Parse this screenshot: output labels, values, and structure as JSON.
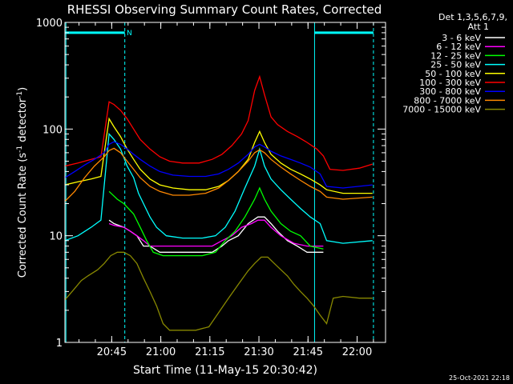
{
  "chart_data": {
    "type": "line",
    "title": "RHESSI Observing Summary Count Rates, Corrected",
    "xlabel": "Start Time (11-May-15 20:30:42)",
    "ylabel_main": "Corrected Count Rate (s",
    "ylabel_sup1": "-1",
    "ylabel_mid": " detector",
    "ylabel_sup2": "-1",
    "ylabel_end": ")",
    "yscale": "log",
    "ylim": [
      1,
      1000
    ],
    "xlim_minutes": [
      0,
      98
    ],
    "x_ticks": [
      {
        "label": "20:45",
        "minute": 14.3
      },
      {
        "label": "21:00",
        "minute": 29.3
      },
      {
        "label": "21:15",
        "minute": 44.3
      },
      {
        "label": "21:30",
        "minute": 59.3
      },
      {
        "label": "21:45",
        "minute": 74.3
      },
      {
        "label": "22:00",
        "minute": 89.3
      }
    ],
    "y_ticks": [
      {
        "label": "1",
        "value": 1
      },
      {
        "label": "10",
        "value": 10
      },
      {
        "label": "100",
        "value": 100
      },
      {
        "label": "1000",
        "value": 1000
      }
    ],
    "legend_header": [
      "Det 1,3,5,6,7,9,",
      "Att 1"
    ],
    "legend_position": "top-right",
    "night_marker": "N",
    "footer_timestamp": "25-Oct-2021 22:18",
    "night_bars": [
      {
        "x_start": 0,
        "x_end": 18.3,
        "value": 800
      },
      {
        "x_start": 76.3,
        "x_end": 94.3,
        "value": 800
      }
    ],
    "vlines_solid": [
      0.3,
      76.3
    ],
    "vlines_dashed": [
      18.3,
      94.3
    ],
    "series": [
      {
        "name": "3 - 6 keV",
        "color": "#ffffff",
        "points": [
          [
            13.5,
            14
          ],
          [
            15,
            13
          ],
          [
            18,
            12
          ],
          [
            20,
            11
          ],
          [
            22,
            10
          ],
          [
            24,
            8
          ],
          [
            26,
            8
          ],
          [
            29,
            7
          ],
          [
            33,
            7
          ],
          [
            40,
            7
          ],
          [
            45,
            7
          ],
          [
            48,
            8
          ],
          [
            50,
            9
          ],
          [
            53,
            10
          ],
          [
            56,
            13
          ],
          [
            59,
            15
          ],
          [
            61,
            15
          ],
          [
            63,
            13
          ],
          [
            65,
            11
          ],
          [
            68,
            9
          ],
          [
            71,
            8
          ],
          [
            74,
            7
          ],
          [
            79,
            7
          ]
        ]
      },
      {
        "name": "6 - 12 keV",
        "color": "#ff00ff",
        "points": [
          [
            13.5,
            13
          ],
          [
            15,
            12.5
          ],
          [
            18,
            12
          ],
          [
            20,
            11
          ],
          [
            22,
            10
          ],
          [
            24,
            9
          ],
          [
            26,
            8
          ],
          [
            28,
            8
          ],
          [
            31,
            8
          ],
          [
            40,
            8
          ],
          [
            45,
            8
          ],
          [
            48,
            9
          ],
          [
            51,
            10
          ],
          [
            54,
            12
          ],
          [
            57,
            13
          ],
          [
            59,
            14
          ],
          [
            61,
            14
          ],
          [
            63,
            12
          ],
          [
            66,
            10
          ],
          [
            70,
            8.5
          ],
          [
            74,
            8
          ],
          [
            79,
            8
          ]
        ]
      },
      {
        "name": "12 - 25 keV",
        "color": "#00ff00",
        "points": [
          [
            13.5,
            26
          ],
          [
            16,
            22
          ],
          [
            18,
            20
          ],
          [
            21,
            16
          ],
          [
            23,
            12
          ],
          [
            25,
            9
          ],
          [
            27,
            7
          ],
          [
            30,
            6.5
          ],
          [
            35,
            6.5
          ],
          [
            42,
            6.5
          ],
          [
            46,
            7
          ],
          [
            49,
            9
          ],
          [
            52,
            11
          ],
          [
            55,
            15
          ],
          [
            58,
            22
          ],
          [
            59.5,
            28
          ],
          [
            61,
            22
          ],
          [
            63,
            17
          ],
          [
            66,
            13
          ],
          [
            69,
            11
          ],
          [
            72,
            10
          ],
          [
            75,
            8
          ],
          [
            79,
            7.5
          ]
        ]
      },
      {
        "name": "25 - 50 keV",
        "color": "#00ffff",
        "points": [
          [
            0,
            9
          ],
          [
            4,
            10
          ],
          [
            8,
            12
          ],
          [
            11,
            14
          ],
          [
            13.5,
            90
          ],
          [
            15,
            80
          ],
          [
            17,
            65
          ],
          [
            19,
            45
          ],
          [
            21,
            35
          ],
          [
            22.5,
            25
          ],
          [
            24,
            20
          ],
          [
            26,
            15
          ],
          [
            28,
            12
          ],
          [
            31,
            10
          ],
          [
            36,
            9.5
          ],
          [
            42,
            9.5
          ],
          [
            46,
            10
          ],
          [
            49,
            12
          ],
          [
            52,
            17
          ],
          [
            55,
            28
          ],
          [
            58,
            45
          ],
          [
            59.5,
            65
          ],
          [
            61,
            45
          ],
          [
            63,
            34
          ],
          [
            66,
            27
          ],
          [
            69,
            22
          ],
          [
            72,
            18
          ],
          [
            75,
            15
          ],
          [
            78,
            13
          ],
          [
            80,
            9
          ],
          [
            85,
            8.5
          ],
          [
            94,
            9
          ]
        ]
      },
      {
        "name": "50 - 100 keV",
        "color": "#ffff00",
        "points": [
          [
            0,
            30
          ],
          [
            4,
            32
          ],
          [
            8,
            34
          ],
          [
            11,
            36
          ],
          [
            13.5,
            125
          ],
          [
            15,
            105
          ],
          [
            17,
            85
          ],
          [
            19,
            65
          ],
          [
            21,
            52
          ],
          [
            23,
            42
          ],
          [
            26,
            34
          ],
          [
            29,
            30
          ],
          [
            33,
            28
          ],
          [
            38,
            27
          ],
          [
            43,
            27
          ],
          [
            47,
            29
          ],
          [
            50,
            33
          ],
          [
            53,
            40
          ],
          [
            56,
            52
          ],
          [
            58,
            75
          ],
          [
            59.5,
            95
          ],
          [
            61,
            75
          ],
          [
            63,
            58
          ],
          [
            66,
            48
          ],
          [
            69,
            42
          ],
          [
            72,
            38
          ],
          [
            75,
            34
          ],
          [
            78,
            30
          ],
          [
            80,
            27
          ],
          [
            85,
            25
          ],
          [
            94,
            25
          ]
        ]
      },
      {
        "name": "100 - 300 keV",
        "color": "#ff0000",
        "points": [
          [
            0,
            45
          ],
          [
            4,
            48
          ],
          [
            8,
            52
          ],
          [
            11,
            55
          ],
          [
            13.5,
            180
          ],
          [
            15,
            170
          ],
          [
            17,
            150
          ],
          [
            19,
            125
          ],
          [
            21,
            100
          ],
          [
            23,
            80
          ],
          [
            26,
            65
          ],
          [
            29,
            55
          ],
          [
            32,
            50
          ],
          [
            36,
            48
          ],
          [
            41,
            48
          ],
          [
            45,
            52
          ],
          [
            48,
            58
          ],
          [
            51,
            70
          ],
          [
            54,
            90
          ],
          [
            56,
            120
          ],
          [
            58,
            230
          ],
          [
            59.5,
            310
          ],
          [
            61,
            210
          ],
          [
            63,
            130
          ],
          [
            65,
            110
          ],
          [
            68,
            95
          ],
          [
            71,
            85
          ],
          [
            74,
            75
          ],
          [
            77,
            65
          ],
          [
            79,
            56
          ],
          [
            81,
            42
          ],
          [
            85,
            41
          ],
          [
            90,
            43
          ],
          [
            94,
            47
          ]
        ]
      },
      {
        "name": "300 - 800 keV",
        "color": "#0000ff",
        "points": [
          [
            0,
            35
          ],
          [
            3,
            40
          ],
          [
            6,
            46
          ],
          [
            9,
            52
          ],
          [
            12,
            60
          ],
          [
            13.5,
            72
          ],
          [
            15,
            76
          ],
          [
            17,
            72
          ],
          [
            19,
            65
          ],
          [
            21,
            58
          ],
          [
            23,
            52
          ],
          [
            26,
            45
          ],
          [
            29,
            40
          ],
          [
            33,
            37
          ],
          [
            38,
            36
          ],
          [
            43,
            36
          ],
          [
            47,
            38
          ],
          [
            50,
            42
          ],
          [
            53,
            48
          ],
          [
            56,
            58
          ],
          [
            58,
            68
          ],
          [
            59.5,
            72
          ],
          [
            61,
            68
          ],
          [
            63,
            62
          ],
          [
            66,
            56
          ],
          [
            69,
            52
          ],
          [
            72,
            48
          ],
          [
            75,
            44
          ],
          [
            78,
            38
          ],
          [
            80,
            29
          ],
          [
            85,
            28
          ],
          [
            94,
            30
          ]
        ]
      },
      {
        "name": "800 - 7000 keV",
        "color": "#ff8800",
        "points": [
          [
            0,
            21
          ],
          [
            3,
            26
          ],
          [
            6,
            35
          ],
          [
            9,
            45
          ],
          [
            12,
            55
          ],
          [
            13.5,
            63
          ],
          [
            15,
            66
          ],
          [
            17,
            60
          ],
          [
            19,
            50
          ],
          [
            21,
            42
          ],
          [
            23,
            35
          ],
          [
            26,
            29
          ],
          [
            29,
            26
          ],
          [
            33,
            24
          ],
          [
            38,
            24
          ],
          [
            43,
            25
          ],
          [
            47,
            28
          ],
          [
            50,
            33
          ],
          [
            53,
            40
          ],
          [
            56,
            50
          ],
          [
            58,
            60
          ],
          [
            59.5,
            64
          ],
          [
            61,
            60
          ],
          [
            63,
            52
          ],
          [
            66,
            44
          ],
          [
            69,
            38
          ],
          [
            72,
            33
          ],
          [
            75,
            29
          ],
          [
            78,
            26
          ],
          [
            80,
            23
          ],
          [
            85,
            22
          ],
          [
            94,
            23
          ]
        ]
      },
      {
        "name": "7000 - 15000 keV",
        "color": "#888800",
        "points": [
          [
            0,
            2.5
          ],
          [
            3,
            3.2
          ],
          [
            5,
            3.8
          ],
          [
            7,
            4.2
          ],
          [
            10,
            4.8
          ],
          [
            12,
            5.5
          ],
          [
            14,
            6.5
          ],
          [
            16,
            7
          ],
          [
            18,
            7
          ],
          [
            20,
            6.5
          ],
          [
            22,
            5.5
          ],
          [
            24,
            4
          ],
          [
            26,
            3
          ],
          [
            28,
            2.2
          ],
          [
            30,
            1.5
          ],
          [
            32,
            1.3
          ],
          [
            36,
            1.3
          ],
          [
            40,
            1.3
          ],
          [
            44,
            1.4
          ],
          [
            47,
            1.9
          ],
          [
            50,
            2.6
          ],
          [
            53,
            3.5
          ],
          [
            56,
            4.7
          ],
          [
            58,
            5.5
          ],
          [
            60,
            6.3
          ],
          [
            62,
            6.3
          ],
          [
            64,
            5.5
          ],
          [
            66,
            4.8
          ],
          [
            68,
            4.2
          ],
          [
            70,
            3.5
          ],
          [
            72,
            3
          ],
          [
            74,
            2.6
          ],
          [
            76,
            2.2
          ],
          [
            78,
            1.8
          ],
          [
            80,
            1.5
          ],
          [
            82,
            2.6
          ],
          [
            85,
            2.7
          ],
          [
            90,
            2.6
          ],
          [
            94,
            2.6
          ]
        ]
      }
    ]
  }
}
